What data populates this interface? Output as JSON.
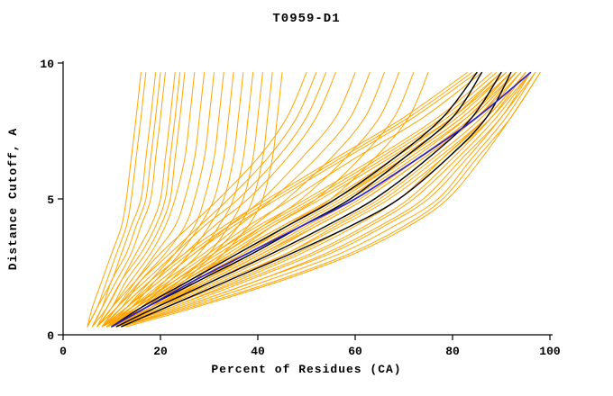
{
  "chart_data": {
    "type": "line",
    "title": "T0959-D1",
    "xlabel": "Percent of Residues (CA)",
    "ylabel": "Distance Cutoff, A",
    "xlim": [
      0,
      100
    ],
    "ylim": [
      0,
      10
    ],
    "xticks": [
      0,
      20,
      40,
      60,
      80,
      100
    ],
    "yticks": [
      0,
      5,
      10
    ],
    "grid": false,
    "legend": null,
    "colors": {
      "orange": "#FFA500",
      "black": "#000000",
      "blue": "#2A1FCC",
      "axis": "#000000"
    },
    "y_levels": [
      0.3,
      1,
      2,
      3,
      4,
      5,
      6.5,
      8,
      9.65
    ],
    "series": {
      "orange_percent_at_levels": [
        [
          8,
          14,
          22,
          30,
          38,
          47,
          60,
          74,
          86
        ],
        [
          9,
          16,
          25,
          34,
          43,
          53,
          67,
          80,
          91
        ],
        [
          10,
          18,
          28,
          38,
          48,
          58,
          71,
          83,
          93
        ],
        [
          8,
          13,
          20,
          27,
          35,
          44,
          58,
          72,
          85
        ],
        [
          9,
          17,
          27,
          37,
          47,
          57,
          70,
          82,
          92
        ],
        [
          10,
          20,
          31,
          42,
          52,
          62,
          74,
          85,
          94
        ],
        [
          8,
          15,
          24,
          33,
          42,
          52,
          66,
          79,
          90
        ],
        [
          9,
          18,
          30,
          41,
          51,
          61,
          73,
          84,
          93
        ],
        [
          10,
          21,
          34,
          46,
          56,
          66,
          77,
          87,
          95
        ],
        [
          8,
          14,
          23,
          32,
          41,
          51,
          65,
          78,
          89
        ],
        [
          9,
          19,
          32,
          44,
          55,
          65,
          76,
          86,
          94
        ],
        [
          10,
          22,
          36,
          49,
          60,
          69,
          79,
          88,
          96
        ],
        [
          8,
          16,
          26,
          36,
          46,
          56,
          69,
          81,
          91
        ],
        [
          9,
          20,
          33,
          46,
          57,
          67,
          78,
          87,
          95
        ],
        [
          10,
          23,
          38,
          52,
          63,
          72,
          81,
          89,
          96
        ],
        [
          11,
          24,
          40,
          55,
          66,
          75,
          83,
          90,
          97
        ],
        [
          8,
          13,
          19,
          26,
          34,
          43,
          57,
          71,
          84
        ],
        [
          9,
          15,
          23,
          31,
          40,
          50,
          64,
          77,
          88
        ],
        [
          10,
          17,
          26,
          35,
          45,
          55,
          68,
          80,
          90
        ],
        [
          11,
          19,
          29,
          39,
          49,
          59,
          72,
          83,
          92
        ],
        [
          12,
          25,
          42,
          57,
          68,
          77,
          84,
          91,
          97
        ],
        [
          11,
          22,
          37,
          51,
          62,
          71,
          80,
          88,
          95
        ],
        [
          12,
          26,
          44,
          59,
          70,
          78,
          85,
          92,
          98
        ],
        [
          10,
          19,
          30,
          41,
          52,
          62,
          74,
          85,
          93
        ],
        [
          9,
          16,
          25,
          35,
          45,
          56,
          70,
          82,
          92
        ],
        [
          8,
          12,
          18,
          25,
          33,
          42,
          56,
          70,
          83
        ],
        [
          13,
          27,
          45,
          60,
          71,
          79,
          86,
          92,
          98
        ],
        [
          12,
          24,
          40,
          54,
          65,
          74,
          82,
          90,
          96
        ],
        [
          11,
          21,
          35,
          48,
          59,
          69,
          78,
          87,
          95
        ],
        [
          10,
          18,
          29,
          40,
          50,
          60,
          73,
          84,
          93
        ],
        [
          5,
          7,
          9,
          11,
          13,
          14,
          15,
          16,
          17
        ],
        [
          5,
          7,
          10,
          12,
          14,
          16,
          17,
          18,
          19
        ],
        [
          6,
          8,
          11,
          14,
          16,
          18,
          19,
          20,
          21
        ],
        [
          6,
          9,
          12,
          15,
          18,
          20,
          21,
          22,
          23
        ],
        [
          7,
          10,
          13,
          17,
          20,
          22,
          23,
          24,
          25
        ],
        [
          7,
          10,
          14,
          18,
          21,
          23,
          25,
          26,
          27
        ],
        [
          8,
          11,
          15,
          19,
          23,
          25,
          27,
          28,
          29
        ],
        [
          8,
          12,
          16,
          21,
          25,
          27,
          29,
          30,
          31
        ],
        [
          9,
          13,
          18,
          23,
          27,
          29,
          31,
          32,
          33
        ],
        [
          9,
          14,
          19,
          24,
          28,
          31,
          33,
          34,
          35
        ],
        [
          10,
          15,
          21,
          26,
          30,
          33,
          35,
          36,
          37
        ],
        [
          10,
          16,
          22,
          28,
          32,
          35,
          37,
          38,
          39
        ],
        [
          11,
          17,
          24,
          30,
          34,
          37,
          39,
          40,
          41
        ],
        [
          11,
          18,
          25,
          31,
          36,
          39,
          41,
          42,
          43
        ],
        [
          12,
          19,
          27,
          33,
          38,
          41,
          43,
          44,
          45
        ],
        [
          6,
          8,
          10,
          13,
          15,
          17,
          18,
          19,
          20
        ],
        [
          7,
          9,
          12,
          16,
          19,
          21,
          22,
          23,
          24
        ],
        [
          5,
          6,
          8,
          10,
          12,
          13,
          14,
          15,
          16
        ],
        [
          7,
          11,
          16,
          22,
          28,
          34,
          42,
          48,
          52
        ],
        [
          8,
          12,
          18,
          25,
          31,
          38,
          46,
          52,
          56
        ],
        [
          8,
          13,
          20,
          27,
          34,
          41,
          49,
          56,
          60
        ],
        [
          9,
          14,
          21,
          29,
          36,
          43,
          52,
          59,
          63
        ],
        [
          9,
          15,
          23,
          31,
          39,
          46,
          55,
          62,
          66
        ],
        [
          10,
          16,
          24,
          33,
          41,
          49,
          58,
          65,
          69
        ],
        [
          10,
          17,
          26,
          35,
          43,
          52,
          61,
          68,
          72
        ],
        [
          11,
          18,
          28,
          37,
          46,
          55,
          64,
          71,
          75
        ],
        [
          7,
          10,
          15,
          20,
          26,
          32,
          40,
          46,
          50
        ],
        [
          8,
          11,
          17,
          23,
          29,
          36,
          44,
          50,
          54
        ]
      ],
      "black_percent_at_levels": [
        [
          10,
          16,
          26,
          36,
          46,
          56,
          68,
          78,
          85
        ],
        [
          10,
          17,
          28,
          39,
          49,
          59,
          70,
          80,
          86
        ],
        [
          11,
          19,
          31,
          43,
          54,
          64,
          75,
          84,
          90
        ],
        [
          12,
          21,
          34,
          47,
          59,
          69,
          79,
          87,
          92
        ]
      ],
      "blue_percent_at_levels": [
        [
          10,
          17,
          27,
          38,
          49,
          60,
          73,
          85,
          96
        ]
      ]
    }
  }
}
